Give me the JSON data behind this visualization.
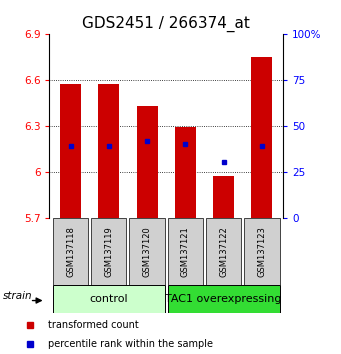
{
  "title": "GDS2451 / 266374_at",
  "samples": [
    "GSM137118",
    "GSM137119",
    "GSM137120",
    "GSM137121",
    "GSM137122",
    "GSM137123"
  ],
  "bar_bottom": 5.7,
  "bar_tops": [
    6.57,
    6.57,
    6.43,
    6.29,
    5.97,
    6.75
  ],
  "percentile_values": [
    6.17,
    6.17,
    6.2,
    6.18,
    6.06,
    6.17
  ],
  "ylim_left": [
    5.7,
    6.9
  ],
  "ylim_right": [
    0,
    100
  ],
  "yticks_left": [
    5.7,
    6.0,
    6.3,
    6.6,
    6.9
  ],
  "ytick_labels_left": [
    "5.7",
    "6",
    "6.3",
    "6.6",
    "6.9"
  ],
  "yticks_right": [
    0,
    25,
    50,
    75,
    100
  ],
  "ytick_labels_right": [
    "0",
    "25",
    "50",
    "75",
    "100%"
  ],
  "bar_color": "#cc0000",
  "percentile_color": "#0000cc",
  "group_labels": [
    "control",
    "TAC1 overexpressing"
  ],
  "group_colors_light": "#ccffcc",
  "group_colors_dark": "#33dd33",
  "bg_color_all": "#d0d0d0",
  "strain_label": "strain",
  "legend_items": [
    "transformed count",
    "percentile rank within the sample"
  ],
  "grid_yticks": [
    6.0,
    6.3,
    6.6
  ],
  "title_fontsize": 11
}
